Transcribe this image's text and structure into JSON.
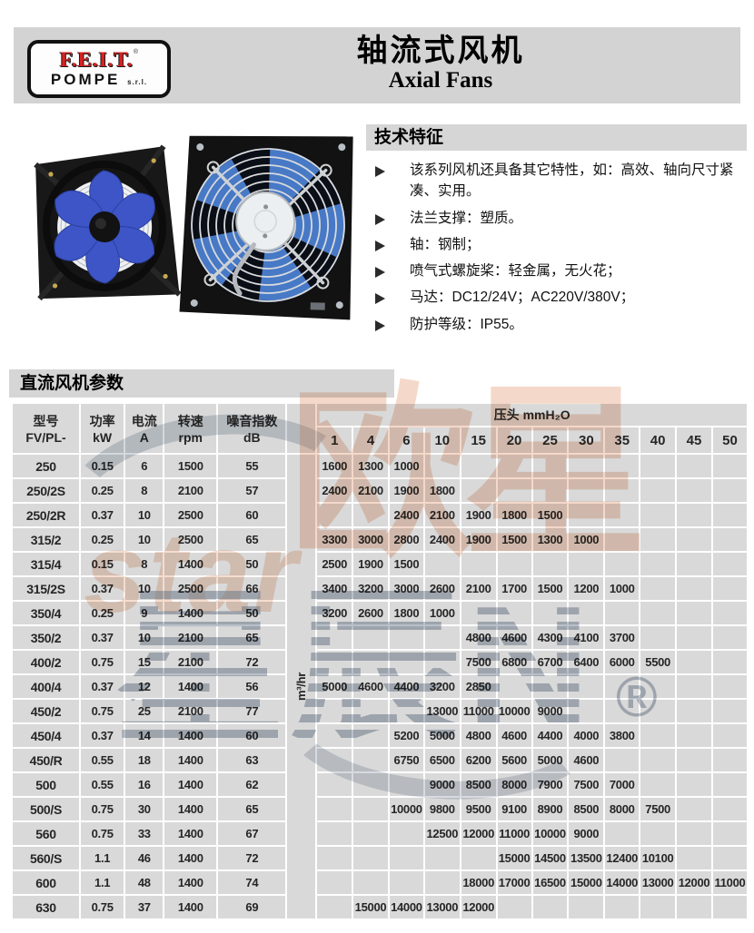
{
  "header": {
    "logo": {
      "brand": "F.E.I.T.",
      "mark": "®",
      "sub": "POMPE",
      "suffix": "s.r.l."
    },
    "title_cn": "轴流式风机",
    "title_en": "Axial Fans"
  },
  "features": {
    "title": "技术特征",
    "items": [
      "该系列风机还具备其它特性，如：高效、轴向尺寸紧凑、实用。",
      "法兰支撑：塑质。",
      "轴：钢制；",
      "喷气式螺旋桨：轻金属，无火花；",
      "马达：DC12/24V；AC220V/380V；",
      "防护等级：IP55。"
    ]
  },
  "table_section": {
    "title": "直流风机参数"
  },
  "watermark": {
    "cn_salmon": "欧星",
    "latin_salmon": "star",
    "cn_gray": "星辰N",
    "registered": "®"
  },
  "colors": {
    "band_gray": "#d3d3d3",
    "cell_gray": "#d9d9d9",
    "logo_red": "#d92121",
    "watermark_salmon": "#de8a5c",
    "watermark_gray": "#808d9e",
    "blade_blue": "#3d55c6"
  },
  "chart_data": {
    "type": "table",
    "column_headers": [
      "型号 FV/PL-",
      "功率 kW",
      "电流 A",
      "转速 rpm",
      "噪音指数 dB"
    ],
    "flow_unit": "m³/hr",
    "pressure_header": "压头 mmH₂O",
    "pressure_columns": [
      "1",
      "4",
      "6",
      "10",
      "15",
      "20",
      "25",
      "30",
      "35",
      "40",
      "45",
      "50"
    ],
    "rows": [
      {
        "model": "250",
        "power_kw": "0.15",
        "current_a": "6",
        "speed_rpm": "1500",
        "noise_db": "55",
        "flow_m3hr": [
          "1600",
          "1300",
          "1000",
          "",
          "",
          "",
          "",
          "",
          "",
          "",
          "",
          ""
        ]
      },
      {
        "model": "250/2S",
        "power_kw": "0.25",
        "current_a": "8",
        "speed_rpm": "2100",
        "noise_db": "57",
        "flow_m3hr": [
          "2400",
          "2100",
          "1900",
          "1800",
          "",
          "",
          "",
          "",
          "",
          "",
          "",
          ""
        ]
      },
      {
        "model": "250/2R",
        "power_kw": "0.37",
        "current_a": "10",
        "speed_rpm": "2500",
        "noise_db": "60",
        "flow_m3hr": [
          "",
          "",
          "2400",
          "2100",
          "1900",
          "1800",
          "1500",
          "",
          "",
          "",
          "",
          ""
        ]
      },
      {
        "model": "315/2",
        "power_kw": "0.25",
        "current_a": "10",
        "speed_rpm": "2500",
        "noise_db": "65",
        "flow_m3hr": [
          "3300",
          "3000",
          "2800",
          "2400",
          "1900",
          "1500",
          "1300",
          "1000",
          "",
          "",
          "",
          ""
        ]
      },
      {
        "model": "315/4",
        "power_kw": "0.15",
        "current_a": "8",
        "speed_rpm": "1400",
        "noise_db": "50",
        "flow_m3hr": [
          "2500",
          "1900",
          "1500",
          "",
          "",
          "",
          "",
          "",
          "",
          "",
          "",
          ""
        ]
      },
      {
        "model": "315/2S",
        "power_kw": "0.37",
        "current_a": "10",
        "speed_rpm": "2500",
        "noise_db": "66",
        "flow_m3hr": [
          "3400",
          "3200",
          "3000",
          "2600",
          "2100",
          "1700",
          "1500",
          "1200",
          "1000",
          "",
          "",
          ""
        ]
      },
      {
        "model": "350/4",
        "power_kw": "0.25",
        "current_a": "9",
        "speed_rpm": "1400",
        "noise_db": "50",
        "flow_m3hr": [
          "3200",
          "2600",
          "1800",
          "1000",
          "",
          "",
          "",
          "",
          "",
          "",
          "",
          ""
        ]
      },
      {
        "model": "350/2",
        "power_kw": "0.37",
        "current_a": "10",
        "speed_rpm": "2100",
        "noise_db": "65",
        "flow_m3hr": [
          "",
          "",
          "",
          "",
          "4800",
          "4600",
          "4300",
          "4100",
          "3700",
          "",
          "",
          ""
        ]
      },
      {
        "model": "400/2",
        "power_kw": "0.75",
        "current_a": "15",
        "speed_rpm": "2100",
        "noise_db": "72",
        "flow_m3hr": [
          "",
          "",
          "",
          "",
          "7500",
          "6800",
          "6700",
          "6400",
          "6000",
          "5500",
          "",
          ""
        ]
      },
      {
        "model": "400/4",
        "power_kw": "0.37",
        "current_a": "12",
        "speed_rpm": "1400",
        "noise_db": "56",
        "flow_m3hr": [
          "5000",
          "4600",
          "4400",
          "3200",
          "2850",
          "",
          "",
          "",
          "",
          "",
          "",
          ""
        ]
      },
      {
        "model": "450/2",
        "power_kw": "0.75",
        "current_a": "25",
        "speed_rpm": "2100",
        "noise_db": "77",
        "flow_m3hr": [
          "",
          "",
          "",
          "13000",
          "11000",
          "10000",
          "9000",
          "",
          "",
          "",
          "",
          ""
        ]
      },
      {
        "model": "450/4",
        "power_kw": "0.37",
        "current_a": "14",
        "speed_rpm": "1400",
        "noise_db": "60",
        "flow_m3hr": [
          "",
          "",
          "5200",
          "5000",
          "4800",
          "4600",
          "4400",
          "4000",
          "3800",
          "",
          "",
          ""
        ]
      },
      {
        "model": "450/R",
        "power_kw": "0.55",
        "current_a": "18",
        "speed_rpm": "1400",
        "noise_db": "63",
        "flow_m3hr": [
          "",
          "",
          "6750",
          "6500",
          "6200",
          "5600",
          "5000",
          "4600",
          "",
          "",
          "",
          ""
        ]
      },
      {
        "model": "500",
        "power_kw": "0.55",
        "current_a": "16",
        "speed_rpm": "1400",
        "noise_db": "62",
        "flow_m3hr": [
          "",
          "",
          "",
          "9000",
          "8500",
          "8000",
          "7900",
          "7500",
          "7000",
          "",
          "",
          ""
        ]
      },
      {
        "model": "500/S",
        "power_kw": "0.75",
        "current_a": "30",
        "speed_rpm": "1400",
        "noise_db": "65",
        "flow_m3hr": [
          "",
          "",
          "10000",
          "9800",
          "9500",
          "9100",
          "8900",
          "8500",
          "8000",
          "7500",
          "",
          ""
        ]
      },
      {
        "model": "560",
        "power_kw": "0.75",
        "current_a": "33",
        "speed_rpm": "1400",
        "noise_db": "67",
        "flow_m3hr": [
          "",
          "",
          "",
          "12500",
          "12000",
          "11000",
          "10000",
          "9000",
          "",
          "",
          "",
          ""
        ]
      },
      {
        "model": "560/S",
        "power_kw": "1.1",
        "current_a": "46",
        "speed_rpm": "1400",
        "noise_db": "72",
        "flow_m3hr": [
          "",
          "",
          "",
          "",
          "",
          "15000",
          "14500",
          "13500",
          "12400",
          "10100",
          "",
          ""
        ]
      },
      {
        "model": "600",
        "power_kw": "1.1",
        "current_a": "48",
        "speed_rpm": "1400",
        "noise_db": "74",
        "flow_m3hr": [
          "",
          "",
          "",
          "",
          "18000",
          "17000",
          "16500",
          "15000",
          "14000",
          "13000",
          "12000",
          "11000"
        ]
      },
      {
        "model": "630",
        "power_kw": "0.75",
        "current_a": "37",
        "speed_rpm": "1400",
        "noise_db": "69",
        "flow_m3hr": [
          "",
          "15000",
          "14000",
          "13000",
          "12000",
          "",
          "",
          "",
          "",
          "",
          "",
          ""
        ]
      }
    ]
  }
}
